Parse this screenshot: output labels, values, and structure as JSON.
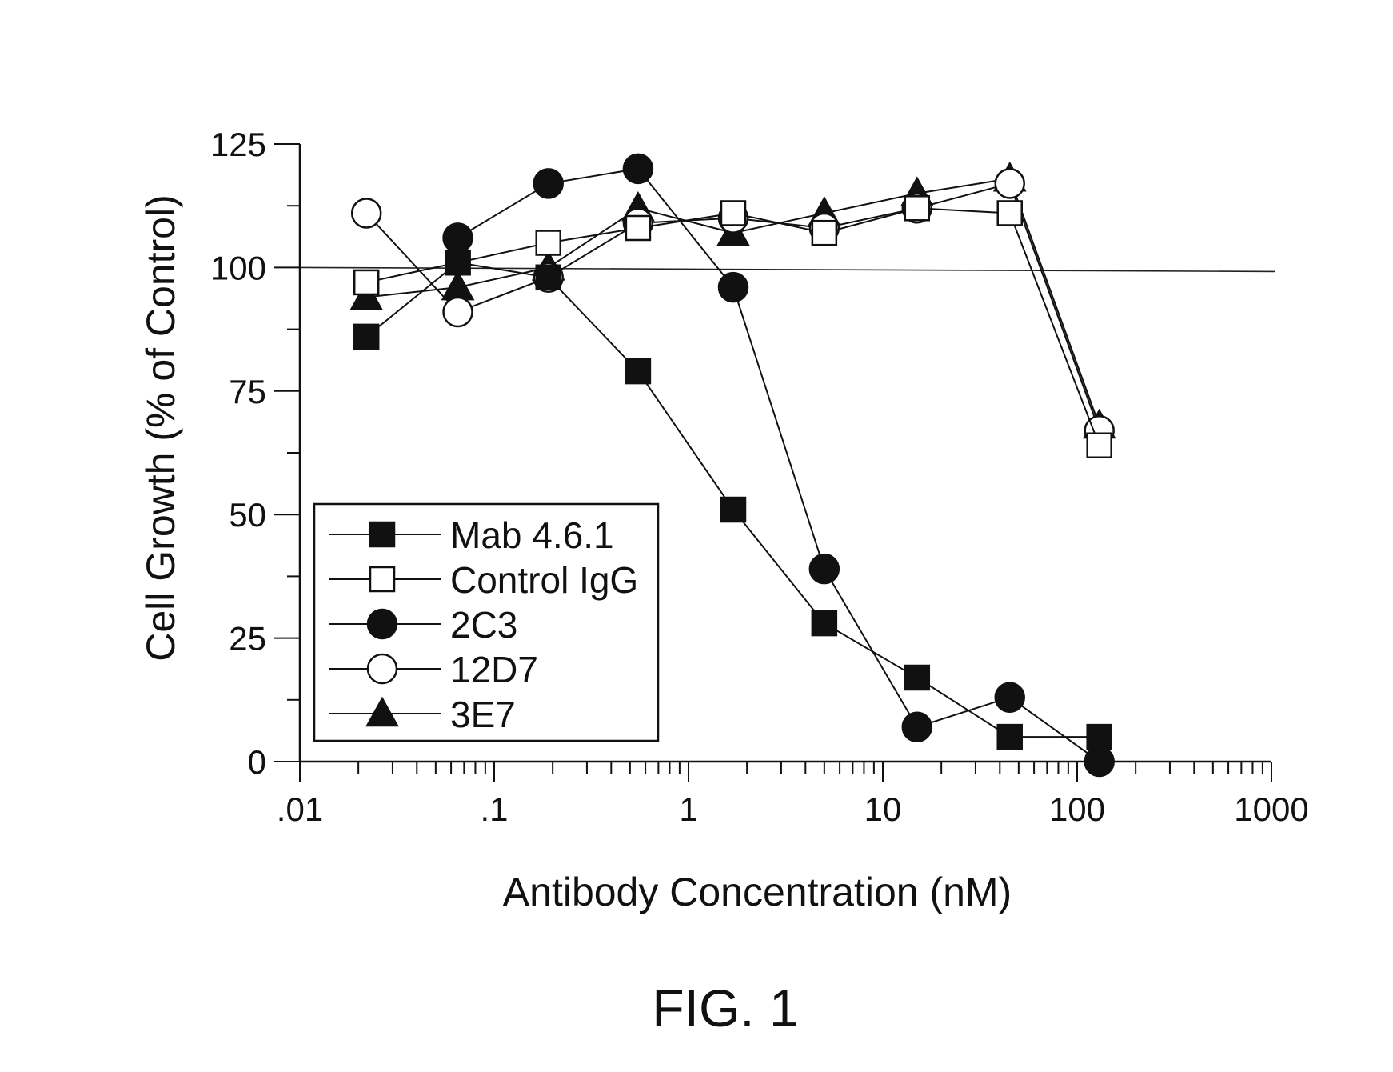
{
  "figure": {
    "caption": "FIG. 1"
  },
  "chart_data": {
    "type": "line",
    "title": "",
    "xlabel": "Antibody Concentration (nM)",
    "ylabel": "Cell Growth (% of Control)",
    "xscale": "log",
    "xlim": [
      0.01,
      1000
    ],
    "ylim": [
      0,
      125
    ],
    "xticks": [
      ".01",
      ".1",
      "1",
      "10",
      "100",
      "1000"
    ],
    "yticks": [
      "0",
      "25",
      "50",
      "75",
      "100",
      "125"
    ],
    "reference_line": 100,
    "legend_position": "lower-left",
    "x": [
      0.022,
      0.065,
      0.19,
      0.55,
      1.7,
      5,
      15,
      45,
      130
    ],
    "series": [
      {
        "name": "Mab 4.6.1",
        "marker": "filled-square",
        "values": [
          86,
          101,
          98,
          79,
          51,
          28,
          17,
          5,
          5
        ]
      },
      {
        "name": "Control IgG",
        "marker": "open-square",
        "values": [
          97,
          101,
          105,
          108,
          111,
          107,
          112,
          111,
          64
        ]
      },
      {
        "name": "2C3",
        "marker": "filled-circle",
        "values": [
          null,
          106,
          117,
          120,
          96,
          39,
          7,
          13,
          0
        ]
      },
      {
        "name": "12D7",
        "marker": "open-circle",
        "values": [
          111,
          91,
          98,
          109,
          110,
          108,
          112,
          117,
          67
        ]
      },
      {
        "name": "3E7",
        "marker": "filled-triangle",
        "values": [
          94,
          96,
          100,
          112,
          107,
          111,
          115,
          118,
          68
        ]
      }
    ]
  }
}
